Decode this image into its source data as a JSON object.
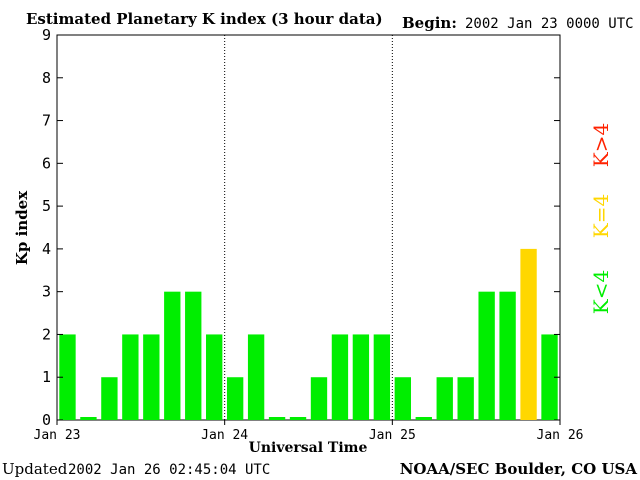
{
  "header": {
    "title": "Estimated Planetary K index (3 hour data)",
    "begin_label": "Begin:",
    "begin_value": "2002 Jan 23 0000 UTC"
  },
  "footer": {
    "updated_label": "Updated",
    "updated_value": "2002 Jan 26 02:45:04 UTC",
    "source": "NOAA/SEC Boulder, CO USA"
  },
  "chart_data": {
    "type": "bar",
    "title": "Estimated Planetary K index (3 hour data)",
    "xlabel": "Universal Time",
    "ylabel": "Kp index",
    "ylim": [
      0,
      9
    ],
    "yticks": [
      "0",
      "1",
      "2",
      "3",
      "4",
      "5",
      "6",
      "7",
      "8",
      "9"
    ],
    "xticks": [
      "Jan 23",
      "Jan 24",
      "Jan 25",
      "Jan 26"
    ],
    "day_dividers": [
      "Jan 24",
      "Jan 25"
    ],
    "values": [
      2,
      0,
      1,
      2,
      2,
      3,
      3,
      2,
      1,
      2,
      0,
      0,
      1,
      2,
      2,
      2,
      1,
      0,
      1,
      1,
      3,
      3,
      4,
      2
    ],
    "colors": {
      "below_4": "#00ee00",
      "equal_4": "#ffd700",
      "above_4": "#ff2200"
    },
    "legend": [
      {
        "label": "K<4",
        "color": "#00ee00"
      },
      {
        "label": "K=4",
        "color": "#ffd700"
      },
      {
        "label": "K>4",
        "color": "#ff2200"
      }
    ]
  }
}
